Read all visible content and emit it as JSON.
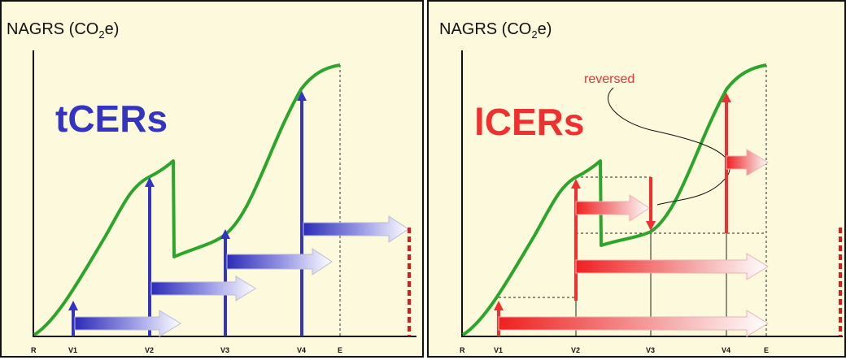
{
  "colors": {
    "background": "#fdf9dc",
    "frame": "#111111",
    "curve": "#2ba62b",
    "tcer_blue": "#3434c0",
    "lcer_red": "#f03030",
    "marker_red": "#e01818"
  },
  "panels": [
    {
      "id": "tcer",
      "y_axis_label": "NAGRS (CO",
      "y_axis_label_sub": "2",
      "y_axis_label_end": "e)",
      "big_label": "tCERs",
      "x_ticks": [
        "R",
        "V1",
        "V2",
        "V3",
        "V4",
        "E"
      ]
    },
    {
      "id": "lcer",
      "y_axis_label": "NAGRS (CO",
      "y_axis_label_sub": "2",
      "y_axis_label_end": "e)",
      "big_label": "lCERs",
      "annotation": "reversed",
      "x_ticks": [
        "R",
        "V1",
        "V2",
        "V3",
        "V4",
        "E"
      ]
    }
  ]
}
